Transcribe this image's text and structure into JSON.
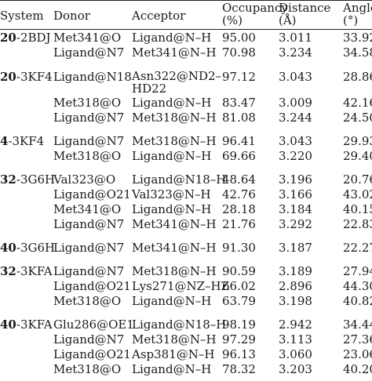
{
  "headers": {
    "system": "System",
    "donor": "Donor",
    "acceptor": "Acceptor",
    "occupancy": [
      "Occupancy",
      "(%)"
    ],
    "distance": [
      "Distance",
      "(Å)"
    ],
    "angle": [
      "Angle",
      "(°)"
    ]
  },
  "groups": [
    {
      "sys_num": "20",
      "sys_name": "-2BDJ",
      "rows": [
        {
          "donor": "Met341@O",
          "acceptor": "Ligand@N–H",
          "occupancy": "95.00",
          "distance": "3.011",
          "angle": "33.92"
        },
        {
          "donor": "Ligand@N7",
          "acceptor": "Met341@N–H",
          "occupancy": "70.98",
          "distance": "3.234",
          "angle": "34.58"
        }
      ]
    },
    {
      "sys_num": "20",
      "sys_name": "-3KF4",
      "rows": [
        {
          "donor": "Ligand@N18",
          "acceptor": [
            "Asn322@ND2–",
            "HD22"
          ],
          "occupancy": "97.12",
          "distance": "3.043",
          "angle": "28.86"
        },
        {
          "donor": "Met318@O",
          "acceptor": "Ligand@N–H",
          "occupancy": "83.47",
          "distance": "3.009",
          "angle": "42.16"
        },
        {
          "donor": "Ligand@N7",
          "acceptor": "Met318@N–H",
          "occupancy": "81.08",
          "distance": "3.244",
          "angle": "24.50"
        }
      ]
    },
    {
      "sys_num": "4",
      "sys_name": "-3KF4",
      "rows": [
        {
          "donor": "Ligand@N7",
          "acceptor": "Met318@N–H",
          "occupancy": "96.41",
          "distance": "3.043",
          "angle": "29.93"
        },
        {
          "donor": "Met318@O",
          "acceptor": "Ligand@N–H",
          "occupancy": "69.66",
          "distance": "3.220",
          "angle": "29.40"
        }
      ]
    },
    {
      "sys_num": "32",
      "sys_name": "-3G6H",
      "rows": [
        {
          "donor": "Val323@O",
          "acceptor": "Ligand@N18–H",
          "occupancy": "48.64",
          "distance": "3.196",
          "angle": "20.76"
        },
        {
          "donor": "Ligand@O21",
          "acceptor": "Val323@N–H",
          "occupancy": "42.76",
          "distance": "3.166",
          "angle": "43.02"
        },
        {
          "donor": "Met341@O",
          "acceptor": "Ligand@N–H",
          "occupancy": "28.18",
          "distance": "3.184",
          "angle": "40.15"
        },
        {
          "donor": "Ligand@N7",
          "acceptor": "Met341@N–H",
          "occupancy": "21.76",
          "distance": "3.292",
          "angle": "22.83"
        }
      ]
    },
    {
      "sys_num": "40",
      "sys_name": "-3G6H",
      "rows": [
        {
          "donor": "Ligand@N7",
          "acceptor": "Met341@N–H",
          "occupancy": "91.30",
          "distance": "3.187",
          "angle": "22.27"
        }
      ]
    },
    {
      "sys_num": "32",
      "sys_name": "-3KFA",
      "rows": [
        {
          "donor": "Ligand@N7",
          "acceptor": "Met318@N–H",
          "occupancy": "90.59",
          "distance": "3.189",
          "angle": "27.94"
        },
        {
          "donor": "Ligand@O21",
          "acceptor": "Lys271@NZ–HZ",
          "occupancy": "66.02",
          "distance": "2.896",
          "angle": "44.30"
        },
        {
          "donor": "Met318@O",
          "acceptor": "Ligand@N–H",
          "occupancy": "63.79",
          "distance": "3.198",
          "angle": "40.82"
        }
      ]
    },
    {
      "sys_num": "40",
      "sys_name": "-3KFA",
      "rows": [
        {
          "donor": "Glu286@OE1",
          "acceptor": "Ligand@N18–H",
          "occupancy": "98.19",
          "distance": "2.942",
          "angle": "34.44"
        },
        {
          "donor": "Ligand@N7",
          "acceptor": "Met318@N–H",
          "occupancy": "97.29",
          "distance": "3.113",
          "angle": "27.36"
        },
        {
          "donor": "Ligand@O21",
          "acceptor": "Asp381@N–H",
          "occupancy": "96.13",
          "distance": "3.060",
          "angle": "23.06"
        },
        {
          "donor": "Met318@O",
          "acceptor": "Ligand@N–H",
          "occupancy": "78.32",
          "distance": "3.203",
          "angle": "40.20"
        }
      ]
    }
  ]
}
